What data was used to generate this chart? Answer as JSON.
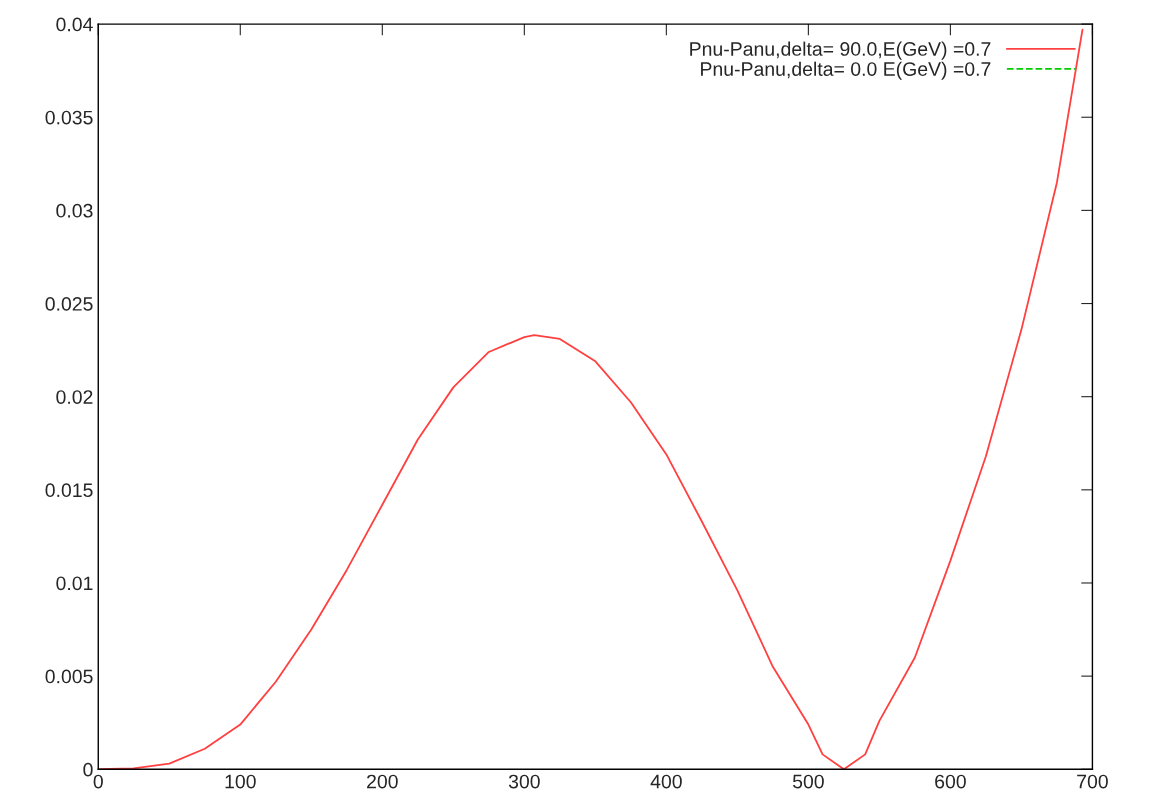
{
  "chart_data": {
    "type": "line",
    "x": [
      0,
      25,
      50,
      75,
      100,
      125,
      150,
      175,
      200,
      225,
      250,
      275,
      300,
      307,
      325,
      350,
      375,
      400,
      425,
      450,
      475,
      500,
      510,
      525,
      540,
      550,
      575,
      600,
      625,
      650,
      675,
      693
    ],
    "series": [
      {
        "name": "Pnu-Panu,delta= 90.0,E(GeV) =0.7",
        "color": "#ff4040",
        "line_style": "solid",
        "values": [
          0,
          5e-05,
          0.0003,
          0.0011,
          0.0024,
          0.0047,
          0.0075,
          0.0107,
          0.0142,
          0.0177,
          0.0205,
          0.0224,
          0.0232,
          0.0233,
          0.0231,
          0.0219,
          0.0197,
          0.0169,
          0.0133,
          0.0096,
          0.0055,
          0.0024,
          0.0008,
          0,
          0.0008,
          0.0026,
          0.006,
          0.0112,
          0.0168,
          0.0236,
          0.0315,
          0.0397
        ]
      },
      {
        "name": "Pnu-Panu,delta= 0.0 E(GeV) =0.7",
        "color": "#00cc00",
        "line_style": "dashed",
        "values": [
          null,
          null,
          null,
          null,
          null,
          null,
          null,
          null,
          null,
          null,
          null,
          null,
          null,
          null,
          null,
          null,
          null,
          null,
          null,
          null,
          null,
          null,
          null,
          null,
          null,
          null,
          null,
          null,
          null,
          null,
          null,
          null
        ]
      }
    ],
    "xlim": [
      0,
      700
    ],
    "xticks": [
      0,
      100,
      200,
      300,
      400,
      500,
      600,
      700
    ],
    "ylim": [
      0,
      0.04
    ],
    "yticks": [
      0,
      0.005,
      0.01,
      0.015,
      0.02,
      0.025,
      0.03,
      0.035,
      0.04
    ],
    "grid": false,
    "legend": "top right"
  }
}
